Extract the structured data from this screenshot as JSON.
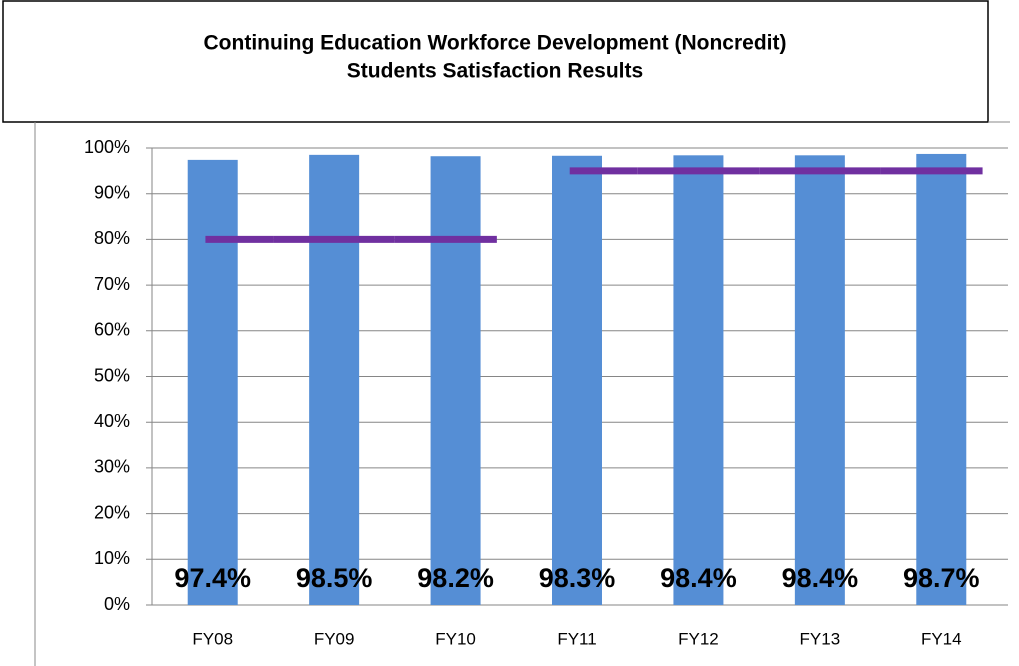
{
  "chart_data": {
    "type": "bar",
    "title": "Continuing Education Workforce Development (Noncredit)",
    "subtitle": "Students Satisfaction Results",
    "categories": [
      "FY08",
      "FY09",
      "FY10",
      "FY11",
      "FY12",
      "FY13",
      "FY14"
    ],
    "values": [
      97.4,
      98.5,
      98.2,
      98.3,
      98.4,
      98.4,
      98.7
    ],
    "value_labels": [
      "97.4%",
      "98.5%",
      "98.2%",
      "98.3%",
      "98.4%",
      "98.4%",
      "98.7%"
    ],
    "color": "#558ed5",
    "series": [
      {
        "type": "line",
        "color": "#7030a0",
        "values": [
          80,
          80,
          80,
          95,
          95,
          95,
          95
        ]
      }
    ],
    "ylim": [
      0,
      100
    ],
    "yticks": [
      {
        "value": 0,
        "label": "0%"
      },
      {
        "value": 10,
        "label": "10%"
      },
      {
        "value": 20,
        "label": "20%"
      },
      {
        "value": 30,
        "label": "30%"
      },
      {
        "value": 40,
        "label": "40%"
      },
      {
        "value": 50,
        "label": "50%"
      },
      {
        "value": 60,
        "label": "60%"
      },
      {
        "value": 70,
        "label": "70%"
      },
      {
        "value": 80,
        "label": "80%"
      },
      {
        "value": 90,
        "label": "90%"
      },
      {
        "value": 100,
        "label": "100%"
      }
    ],
    "grid": true
  }
}
